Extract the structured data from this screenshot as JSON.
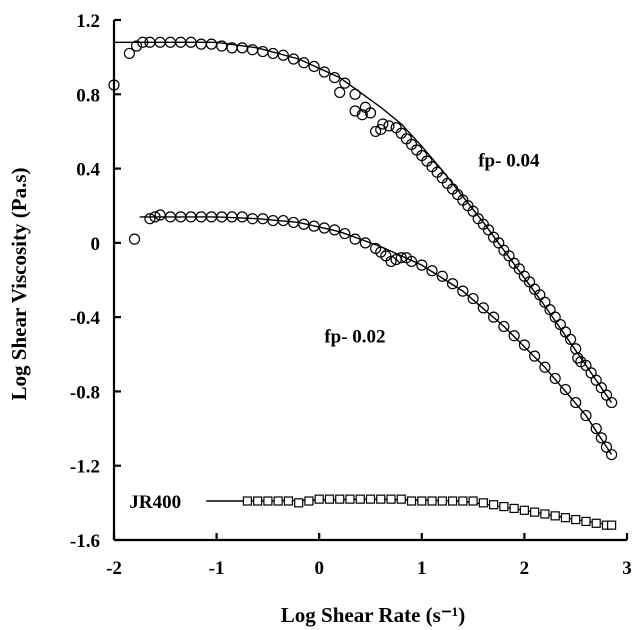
{
  "chart_data": {
    "type": "scatter",
    "title": "",
    "xlabel": "Log Shear Rate (s⁻¹)",
    "ylabel": "Log Shear Viscosity (Pa.s)",
    "xlim": [
      -2,
      3
    ],
    "ylim": [
      -1.6,
      1.2
    ],
    "xticks": [
      "-2",
      "-1",
      "0",
      "1",
      "2",
      "3"
    ],
    "yticks": [
      "1.2",
      "0.8",
      "0.4",
      "0",
      "-0.4",
      "-0.8",
      "-1.2",
      "-1.6"
    ],
    "grid": false,
    "legend": "none",
    "series": [
      {
        "name": "fp- 0.04",
        "marker": "circle",
        "points": [
          [
            -2.0,
            0.85
          ],
          [
            -1.85,
            1.02
          ],
          [
            -1.78,
            1.06
          ],
          [
            -1.72,
            1.08
          ],
          [
            -1.65,
            1.08
          ],
          [
            -1.55,
            1.08
          ],
          [
            -1.45,
            1.08
          ],
          [
            -1.35,
            1.08
          ],
          [
            -1.25,
            1.08
          ],
          [
            -1.15,
            1.07
          ],
          [
            -1.05,
            1.07
          ],
          [
            -0.95,
            1.06
          ],
          [
            -0.85,
            1.05
          ],
          [
            -0.75,
            1.05
          ],
          [
            -0.65,
            1.04
          ],
          [
            -0.55,
            1.03
          ],
          [
            -0.45,
            1.02
          ],
          [
            -0.35,
            1.01
          ],
          [
            -0.25,
            0.99
          ],
          [
            -0.15,
            0.97
          ],
          [
            -0.05,
            0.95
          ],
          [
            0.05,
            0.92
          ],
          [
            0.15,
            0.89
          ],
          [
            0.2,
            0.81
          ],
          [
            0.25,
            0.86
          ],
          [
            0.35,
            0.8
          ],
          [
            0.35,
            0.71
          ],
          [
            0.42,
            0.69
          ],
          [
            0.45,
            0.73
          ],
          [
            0.5,
            0.7
          ],
          [
            0.55,
            0.6
          ],
          [
            0.6,
            0.61
          ],
          [
            0.62,
            0.64
          ],
          [
            0.68,
            0.63
          ],
          [
            0.75,
            0.62
          ],
          [
            0.8,
            0.59
          ],
          [
            0.85,
            0.56
          ],
          [
            0.9,
            0.53
          ],
          [
            0.95,
            0.5
          ],
          [
            1.0,
            0.47
          ],
          [
            1.05,
            0.44
          ],
          [
            1.1,
            0.41
          ],
          [
            1.15,
            0.38
          ],
          [
            1.2,
            0.35
          ],
          [
            1.25,
            0.32
          ],
          [
            1.3,
            0.29
          ],
          [
            1.35,
            0.26
          ],
          [
            1.4,
            0.23
          ],
          [
            1.45,
            0.2
          ],
          [
            1.5,
            0.17
          ],
          [
            1.55,
            0.13
          ],
          [
            1.6,
            0.1
          ],
          [
            1.65,
            0.07
          ],
          [
            1.7,
            0.03
          ],
          [
            1.75,
            0.0
          ],
          [
            1.8,
            -0.04
          ],
          [
            1.85,
            -0.07
          ],
          [
            1.9,
            -0.11
          ],
          [
            1.95,
            -0.14
          ],
          [
            2.0,
            -0.18
          ],
          [
            2.05,
            -0.21
          ],
          [
            2.1,
            -0.25
          ],
          [
            2.15,
            -0.28
          ],
          [
            2.2,
            -0.32
          ],
          [
            2.25,
            -0.36
          ],
          [
            2.3,
            -0.4
          ],
          [
            2.35,
            -0.44
          ],
          [
            2.4,
            -0.48
          ],
          [
            2.45,
            -0.52
          ],
          [
            2.5,
            -0.57
          ],
          [
            2.52,
            -0.62
          ],
          [
            2.55,
            -0.64
          ],
          [
            2.6,
            -0.66
          ],
          [
            2.65,
            -0.7
          ],
          [
            2.7,
            -0.74
          ],
          [
            2.75,
            -0.78
          ],
          [
            2.8,
            -0.82
          ],
          [
            2.85,
            -0.86
          ]
        ]
      },
      {
        "name": "fp- 0.02",
        "marker": "circle",
        "points": [
          [
            -1.8,
            0.02
          ],
          [
            -1.65,
            0.13
          ],
          [
            -1.6,
            0.14
          ],
          [
            -1.55,
            0.15
          ],
          [
            -1.45,
            0.14
          ],
          [
            -1.35,
            0.14
          ],
          [
            -1.25,
            0.14
          ],
          [
            -1.15,
            0.14
          ],
          [
            -1.05,
            0.14
          ],
          [
            -0.95,
            0.14
          ],
          [
            -0.85,
            0.14
          ],
          [
            -0.75,
            0.14
          ],
          [
            -0.65,
            0.13
          ],
          [
            -0.55,
            0.13
          ],
          [
            -0.45,
            0.12
          ],
          [
            -0.35,
            0.12
          ],
          [
            -0.25,
            0.11
          ],
          [
            -0.15,
            0.1
          ],
          [
            -0.05,
            0.09
          ],
          [
            0.05,
            0.08
          ],
          [
            0.15,
            0.07
          ],
          [
            0.25,
            0.05
          ],
          [
            0.35,
            0.02
          ],
          [
            0.45,
            0.0
          ],
          [
            0.55,
            -0.03
          ],
          [
            0.6,
            -0.05
          ],
          [
            0.65,
            -0.07
          ],
          [
            0.7,
            -0.1
          ],
          [
            0.75,
            -0.09
          ],
          [
            0.8,
            -0.08
          ],
          [
            0.85,
            -0.08
          ],
          [
            0.9,
            -0.1
          ],
          [
            1.0,
            -0.12
          ],
          [
            1.1,
            -0.15
          ],
          [
            1.2,
            -0.18
          ],
          [
            1.3,
            -0.22
          ],
          [
            1.4,
            -0.26
          ],
          [
            1.5,
            -0.3
          ],
          [
            1.6,
            -0.35
          ],
          [
            1.7,
            -0.4
          ],
          [
            1.8,
            -0.45
          ],
          [
            1.9,
            -0.5
          ],
          [
            2.0,
            -0.55
          ],
          [
            2.1,
            -0.61
          ],
          [
            2.2,
            -0.67
          ],
          [
            2.3,
            -0.73
          ],
          [
            2.4,
            -0.79
          ],
          [
            2.5,
            -0.86
          ],
          [
            2.6,
            -0.93
          ],
          [
            2.7,
            -1.0
          ],
          [
            2.75,
            -1.05
          ],
          [
            2.8,
            -1.1
          ],
          [
            2.85,
            -1.14
          ]
        ]
      },
      {
        "name": "JR400",
        "marker": "square",
        "points": [
          [
            -0.7,
            -1.39
          ],
          [
            -0.6,
            -1.39
          ],
          [
            -0.5,
            -1.39
          ],
          [
            -0.4,
            -1.39
          ],
          [
            -0.3,
            -1.39
          ],
          [
            -0.2,
            -1.4
          ],
          [
            -0.1,
            -1.39
          ],
          [
            0.0,
            -1.38
          ],
          [
            0.1,
            -1.38
          ],
          [
            0.2,
            -1.38
          ],
          [
            0.3,
            -1.38
          ],
          [
            0.4,
            -1.38
          ],
          [
            0.5,
            -1.38
          ],
          [
            0.6,
            -1.38
          ],
          [
            0.7,
            -1.38
          ],
          [
            0.8,
            -1.38
          ],
          [
            0.9,
            -1.39
          ],
          [
            1.0,
            -1.39
          ],
          [
            1.1,
            -1.39
          ],
          [
            1.2,
            -1.39
          ],
          [
            1.3,
            -1.39
          ],
          [
            1.4,
            -1.39
          ],
          [
            1.5,
            -1.39
          ],
          [
            1.6,
            -1.4
          ],
          [
            1.7,
            -1.41
          ],
          [
            1.8,
            -1.42
          ],
          [
            1.9,
            -1.43
          ],
          [
            2.0,
            -1.44
          ],
          [
            2.1,
            -1.45
          ],
          [
            2.2,
            -1.46
          ],
          [
            2.3,
            -1.47
          ],
          [
            2.4,
            -1.48
          ],
          [
            2.5,
            -1.49
          ],
          [
            2.6,
            -1.5
          ],
          [
            2.7,
            -1.51
          ],
          [
            2.8,
            -1.52
          ],
          [
            2.85,
            -1.52
          ]
        ]
      }
    ],
    "fit_curves": [
      {
        "series": "fp- 0.04",
        "points": [
          [
            -2.0,
            1.08
          ],
          [
            -1.0,
            1.08
          ],
          [
            -0.6,
            1.05
          ],
          [
            -0.2,
            0.99
          ],
          [
            0.2,
            0.89
          ],
          [
            0.6,
            0.73
          ],
          [
            0.8,
            0.64
          ],
          [
            1.0,
            0.52
          ],
          [
            1.2,
            0.39
          ],
          [
            1.4,
            0.25
          ],
          [
            1.6,
            0.11
          ],
          [
            1.8,
            -0.04
          ],
          [
            2.0,
            -0.19
          ],
          [
            2.2,
            -0.34
          ],
          [
            2.4,
            -0.5
          ],
          [
            2.6,
            -0.66
          ],
          [
            2.85,
            -0.86
          ]
        ]
      },
      {
        "series": "fp- 0.02",
        "points": [
          [
            -1.75,
            0.14
          ],
          [
            -1.0,
            0.14
          ],
          [
            -0.6,
            0.13
          ],
          [
            -0.2,
            0.11
          ],
          [
            0.2,
            0.06
          ],
          [
            0.6,
            -0.02
          ],
          [
            1.0,
            -0.12
          ],
          [
            1.4,
            -0.26
          ],
          [
            1.8,
            -0.45
          ],
          [
            2.2,
            -0.67
          ],
          [
            2.6,
            -0.93
          ],
          [
            2.85,
            -1.14
          ]
        ]
      },
      {
        "series": "JR400",
        "points": [
          [
            -1.1,
            -1.39
          ],
          [
            -0.5,
            -1.39
          ],
          [
            0.5,
            -1.38
          ],
          [
            1.4,
            -1.39
          ],
          [
            2.0,
            -1.44
          ],
          [
            2.5,
            -1.49
          ],
          [
            2.85,
            -1.52
          ]
        ]
      }
    ],
    "annotations": [
      {
        "text": "fp- 0.04",
        "x": 1.55,
        "y": 0.45
      },
      {
        "text": "fp- 0.02",
        "x": 0.05,
        "y": -0.5
      },
      {
        "text": "JR400",
        "x": -1.85,
        "y": -1.39
      }
    ]
  }
}
